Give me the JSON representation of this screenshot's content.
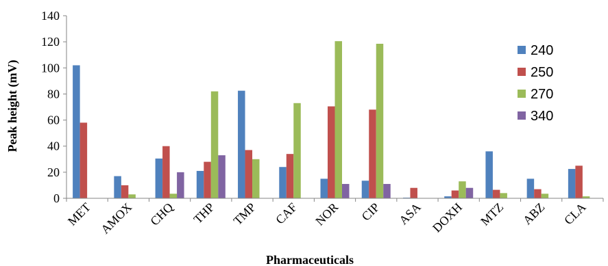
{
  "chart_data": {
    "type": "bar",
    "title": "",
    "xlabel": "Pharmaceuticals",
    "ylabel": "Peak height (mV)",
    "ylim": [
      0,
      140
    ],
    "yticks": [
      0,
      20,
      40,
      60,
      80,
      100,
      120,
      140
    ],
    "yticks_labels": [
      "0",
      "20",
      "40",
      "60",
      "80",
      "100",
      "120",
      "140"
    ],
    "grid": false,
    "legend_position": "right",
    "categories": [
      "MET",
      "AMOX",
      "CHQ",
      "THP",
      "TMP",
      "CAF",
      "NOR",
      "CIP",
      "ASA",
      "DOXH",
      "MTZ",
      "ABZ",
      "CLA"
    ],
    "series": [
      {
        "name": "240",
        "color": "#4f81bd",
        "values": [
          102,
          17,
          30.5,
          21,
          82.5,
          24,
          15,
          13.5,
          0.5,
          1.5,
          36,
          15,
          22.5
        ]
      },
      {
        "name": "250",
        "color": "#c0504d",
        "values": [
          58,
          10,
          40,
          28,
          37,
          34,
          70.5,
          68,
          8,
          6,
          6.5,
          7,
          25
        ]
      },
      {
        "name": "270",
        "color": "#9bbb59",
        "values": [
          0,
          3,
          3.5,
          82,
          30,
          73,
          120.5,
          118.5,
          0,
          13,
          4,
          3.5,
          1.5
        ]
      },
      {
        "name": "340",
        "color": "#8064a2",
        "values": [
          0,
          0,
          20,
          33,
          0,
          0,
          11,
          11,
          0,
          8,
          0,
          0,
          0
        ]
      }
    ]
  }
}
